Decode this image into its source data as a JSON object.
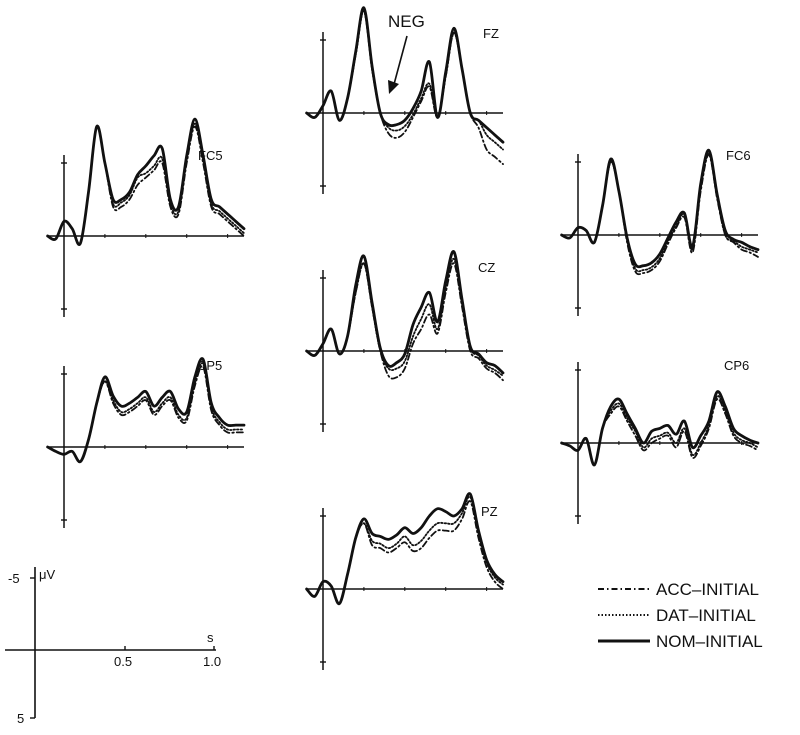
{
  "chart_data": {
    "type": "line",
    "annotation": "NEG",
    "scale": {
      "y_unit": "μV",
      "x_unit": "s",
      "y_ticks": [
        "-5",
        "5"
      ],
      "x_ticks": [
        "0.5",
        "1.0"
      ]
    },
    "legend": {
      "placement": "bottom-right",
      "entries": [
        {
          "name": "ACC–INITIAL",
          "style": "dash-dot"
        },
        {
          "name": "DAT–INITIAL",
          "style": "dotted"
        },
        {
          "name": "NOM–INITIAL",
          "style": "solid"
        }
      ]
    },
    "x": [
      -0.1,
      -0.05,
      0,
      0.05,
      0.1,
      0.15,
      0.2,
      0.25,
      0.3,
      0.35,
      0.4,
      0.45,
      0.5,
      0.55,
      0.6,
      0.65,
      0.7,
      0.75,
      0.8,
      0.85,
      0.9,
      0.95,
      1.0,
      1.05,
      1.1
    ],
    "panels": [
      {
        "name": "FZ",
        "series": [
          {
            "name": "ACC–INITIAL",
            "values": [
              0,
              0.3,
              -0.5,
              -1.5,
              0.5,
              -1,
              -4,
              -7,
              -3,
              0,
              1.4,
              1.7,
              1.3,
              0.3,
              -0.8,
              -1.8,
              0.3,
              -2.5,
              -5.5,
              -3,
              0,
              1,
              2.5,
              3,
              3.5
            ]
          },
          {
            "name": "DAT–INITIAL",
            "values": [
              0,
              0.3,
              -0.5,
              -1.5,
              0.5,
              -1,
              -4,
              -7,
              -3,
              0,
              1.0,
              1.2,
              0.9,
              0.1,
              -1,
              -2,
              0.3,
              -2.5,
              -5.5,
              -3,
              0,
              0.5,
              1.5,
              2,
              2.5
            ]
          },
          {
            "name": "NOM–INITIAL",
            "values": [
              0,
              0.3,
              -0.5,
              -1.5,
              0.5,
              -1,
              -4.2,
              -7.2,
              -3.2,
              0,
              0.8,
              0.8,
              0.5,
              -0.3,
              -1.5,
              -3.5,
              0.3,
              -2.8,
              -5.8,
              -3,
              0,
              0.5,
              1,
              1.5,
              2
            ]
          }
        ]
      },
      {
        "name": "FC5",
        "series": [
          {
            "name": "ACC–INITIAL",
            "values": [
              0,
              0.2,
              -1,
              -0.5,
              0.5,
              -3,
              -7.5,
              -5,
              -2,
              -2,
              -2.5,
              -3.5,
              -4,
              -4.5,
              -5,
              -2,
              -1.5,
              -5,
              -7.5,
              -5,
              -2,
              -1.5,
              -1,
              -0.5,
              0
            ]
          },
          {
            "name": "DAT–INITIAL",
            "values": [
              0,
              0.2,
              -1,
              -0.5,
              0.5,
              -3,
              -7.5,
              -5,
              -2.2,
              -2.3,
              -2.8,
              -4,
              -4.3,
              -4.8,
              -5.3,
              -2.2,
              -1.7,
              -5.2,
              -7.7,
              -5.2,
              -2.2,
              -1.7,
              -1.2,
              -0.7,
              -0.2
            ]
          },
          {
            "name": "NOM–INITIAL",
            "values": [
              0,
              0.2,
              -1,
              -0.5,
              0.5,
              -3,
              -7.5,
              -5,
              -2.5,
              -2.5,
              -3,
              -4.2,
              -4.8,
              -5.5,
              -6,
              -2.5,
              -2,
              -5.5,
              -8,
              -5.5,
              -2.5,
              -2,
              -1.5,
              -1,
              -0.5
            ]
          }
        ]
      },
      {
        "name": "FC6",
        "series": [
          {
            "name": "ACC–INITIAL",
            "values": [
              0,
              0.2,
              -0.5,
              -0.3,
              0.5,
              -2,
              -5,
              -3,
              0.5,
              2.5,
              2.6,
              2.4,
              1.8,
              0.6,
              -0.5,
              -1.2,
              1.2,
              -3,
              -5.5,
              -2.5,
              0,
              0.5,
              1,
              1.2,
              1.5
            ]
          },
          {
            "name": "DAT–INITIAL",
            "values": [
              0,
              0.2,
              -0.5,
              -0.3,
              0.5,
              -2,
              -5,
              -3,
              0.3,
              2.3,
              2.4,
              2.2,
              1.6,
              0.4,
              -0.6,
              -1.4,
              1,
              -3.2,
              -5.6,
              -2.6,
              0,
              0.4,
              0.8,
              1,
              1.2
            ]
          },
          {
            "name": "NOM–INITIAL",
            "values": [
              0,
              0.2,
              -0.5,
              -0.3,
              0.5,
              -2,
              -5.2,
              -3,
              0.2,
              2,
              2.1,
              1.9,
              1.3,
              0.2,
              -0.9,
              -1.5,
              0.8,
              -3.5,
              -5.8,
              -2.8,
              -0.3,
              0.3,
              0.5,
              0.8,
              1
            ]
          }
        ]
      },
      {
        "name": "CZ",
        "series": [
          {
            "name": "ACC–INITIAL",
            "values": [
              0,
              0.3,
              -0.5,
              -1.5,
              0.2,
              -1,
              -4,
              -6,
              -3,
              0,
              1.7,
              1.8,
              1.2,
              -0.5,
              -1.5,
              -2.5,
              -1.2,
              -4,
              -6,
              -3,
              0,
              0.5,
              1.2,
              1.5,
              2
            ]
          },
          {
            "name": "DAT–INITIAL",
            "values": [
              0,
              0.3,
              -0.5,
              -1.5,
              0.2,
              -1,
              -4,
              -6,
              -3,
              0,
              1.2,
              1.2,
              0.7,
              -1,
              -2.2,
              -3.2,
              -1.5,
              -4.3,
              -6.3,
              -3.2,
              -0.2,
              0.3,
              1,
              1.3,
              1.7
            ]
          },
          {
            "name": "NOM–INITIAL",
            "values": [
              0,
              0.3,
              -0.5,
              -1.5,
              0.2,
              -1,
              -4.5,
              -6.5,
              -3.3,
              -0.2,
              1,
              0.8,
              0.2,
              -1.8,
              -3,
              -4,
              -2,
              -4.8,
              -6.8,
              -3.5,
              -0.3,
              0.2,
              0.8,
              1,
              1.5
            ]
          }
        ]
      },
      {
        "name": "CP5",
        "series": [
          {
            "name": "ACC–INITIAL",
            "values": [
              0,
              0.3,
              0.5,
              0.3,
              1,
              -0.5,
              -3,
              -4.5,
              -3,
              -2.2,
              -2.4,
              -2.8,
              -3.2,
              -2.2,
              -2.8,
              -3.2,
              -2,
              -1.8,
              -4.2,
              -5.5,
              -2.5,
              -1.5,
              -1,
              -1,
              -1
            ]
          },
          {
            "name": "DAT–INITIAL",
            "values": [
              0,
              0.3,
              0.5,
              0.3,
              1,
              -0.5,
              -3,
              -4.5,
              -3.2,
              -2.4,
              -2.6,
              -3,
              -3.4,
              -2.4,
              -3,
              -3.4,
              -2.2,
              -2,
              -4.4,
              -5.7,
              -2.7,
              -1.7,
              -1.2,
              -1.2,
              -1.2
            ]
          },
          {
            "name": "NOM–INITIAL",
            "values": [
              0,
              0.3,
              0.5,
              0.3,
              1,
              -0.5,
              -3,
              -4.8,
              -3.5,
              -2.8,
              -3,
              -3.4,
              -3.8,
              -2.8,
              -3.4,
              -3.8,
              -2.6,
              -2.4,
              -4.8,
              -6,
              -3,
              -2,
              -1.5,
              -1.5,
              -1.5
            ]
          }
        ]
      },
      {
        "name": "CP6",
        "series": [
          {
            "name": "ACC–INITIAL",
            "values": [
              0,
              0.2,
              0.5,
              -0.3,
              1.5,
              -1,
              -2,
              -2.5,
              -1.5,
              -0.5,
              0.5,
              0,
              -0.3,
              -0.5,
              0.3,
              -0.8,
              1,
              0.2,
              -1,
              -3,
              -2,
              -0.5,
              0,
              0.2,
              0.5
            ]
          },
          {
            "name": "DAT–INITIAL",
            "values": [
              0,
              0.2,
              0.5,
              -0.3,
              1.5,
              -1,
              -2.2,
              -2.7,
              -1.7,
              -0.8,
              0.3,
              -0.3,
              -0.5,
              -0.7,
              0,
              -1,
              0.8,
              0,
              -1.2,
              -3.2,
              -2.2,
              -0.7,
              -0.2,
              0,
              0.3
            ]
          },
          {
            "name": "NOM–INITIAL",
            "values": [
              0,
              0.2,
              0.5,
              -0.3,
              1.5,
              -1,
              -2.5,
              -3,
              -2,
              -1,
              0,
              -0.8,
              -1,
              -1.2,
              -0.6,
              -1.5,
              0.3,
              -0.5,
              -1.5,
              -3.5,
              -2.5,
              -1,
              -0.5,
              -0.2,
              0
            ]
          }
        ]
      },
      {
        "name": "PZ",
        "series": [
          {
            "name": "ACC–INITIAL",
            "values": [
              0,
              0.5,
              -0.5,
              -0.2,
              1,
              -1,
              -3.5,
              -4.5,
              -3,
              -2.8,
              -2.5,
              -2.8,
              -3.2,
              -2.6,
              -2.8,
              -3.5,
              -4,
              -4,
              -4,
              -4.8,
              -6,
              -3.5,
              -1.5,
              -0.5,
              0
            ]
          },
          {
            "name": "DAT–INITIAL",
            "values": [
              0,
              0.5,
              -0.5,
              -0.2,
              1,
              -1,
              -3.5,
              -4.5,
              -3.3,
              -3.1,
              -2.8,
              -3.1,
              -3.6,
              -3,
              -3.3,
              -4,
              -4.5,
              -4.5,
              -4.5,
              -5.2,
              -6.3,
              -3.8,
              -1.8,
              -0.8,
              -0.3
            ]
          },
          {
            "name": "NOM–INITIAL",
            "values": [
              0,
              0.5,
              -0.5,
              -0.2,
              1,
              -1,
              -3.5,
              -4.8,
              -3.8,
              -3.6,
              -3.4,
              -3.7,
              -4.2,
              -3.8,
              -4.2,
              -5,
              -5.5,
              -5.3,
              -5,
              -5.5,
              -6.5,
              -4,
              -2,
              -1,
              -0.5
            ]
          }
        ]
      }
    ]
  }
}
